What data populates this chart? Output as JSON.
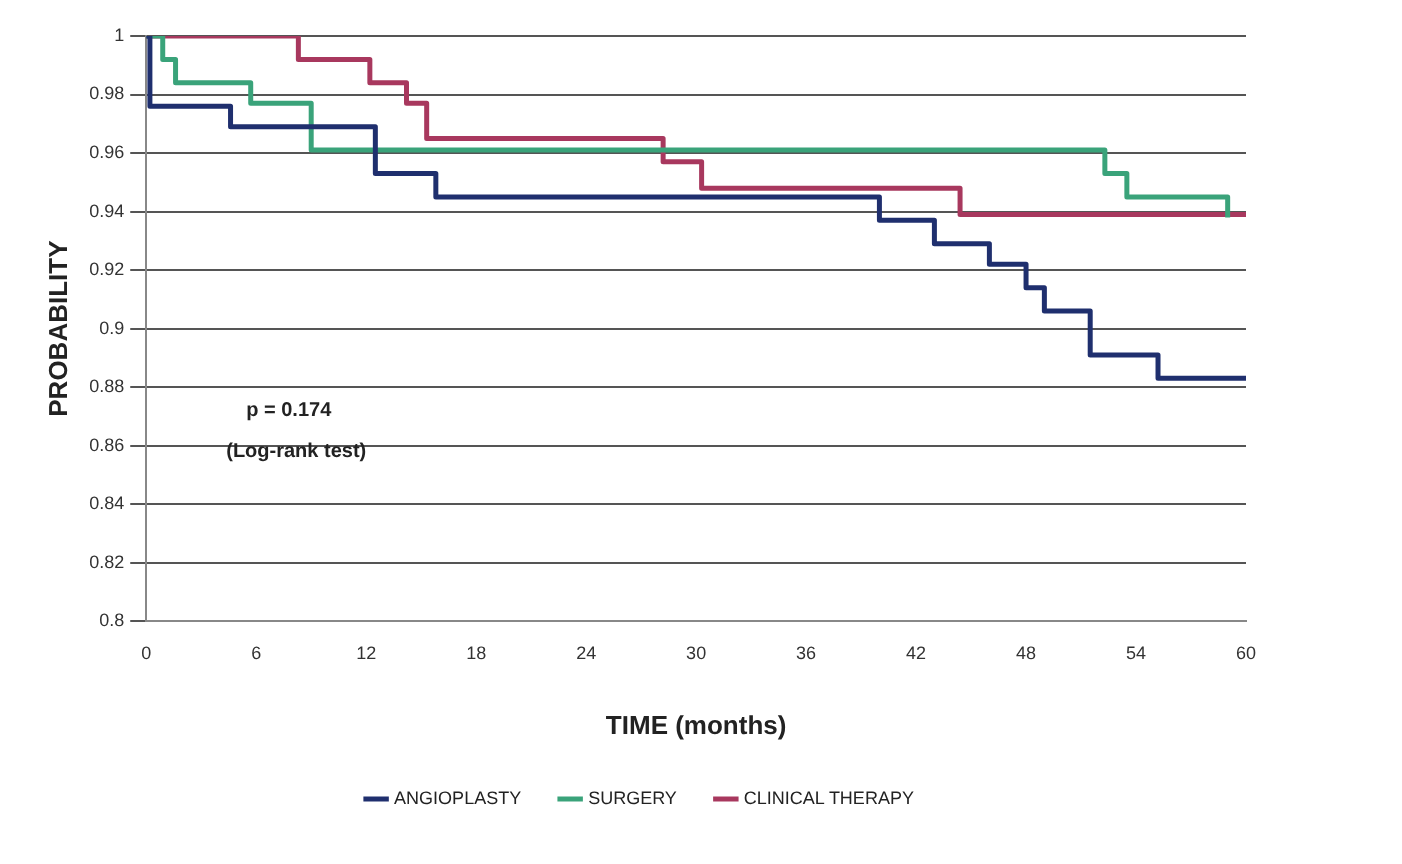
{
  "chart_data": {
    "type": "step",
    "xlabel": "TIME (months)",
    "ylabel": "PROBABILITY",
    "annotations": [
      "p = 0.174",
      "(Log-rank test)"
    ],
    "xlim": [
      0,
      60
    ],
    "xticks": [
      0,
      6,
      12,
      18,
      24,
      30,
      36,
      42,
      48,
      54,
      60
    ],
    "ylim": [
      0.8,
      1
    ],
    "yticks": [
      0.8,
      0.82,
      0.84,
      0.86,
      0.88,
      0.9,
      0.92,
      0.94,
      0.96,
      0.98,
      1
    ],
    "grid": "y",
    "legend": "bottom",
    "marker": "none",
    "line_style": "solid",
    "series": [
      {
        "name": "ANGIOPLASTY",
        "color": "#1f2f6e",
        "x": [
          0,
          0.2,
          4.6,
          12.5,
          15.8,
          40,
          43,
          46,
          48,
          49,
          51.5,
          55.2,
          60
        ],
        "values": [
          1,
          0.976,
          0.969,
          0.953,
          0.945,
          0.937,
          0.929,
          0.922,
          0.914,
          0.906,
          0.891,
          0.883,
          0.883
        ]
      },
      {
        "name": "SURGERY",
        "color": "#3aa37a",
        "x": [
          0,
          0.9,
          1.6,
          5.7,
          9,
          52.3,
          53.5,
          59
        ],
        "values": [
          1,
          0.992,
          0.984,
          0.977,
          0.961,
          0.953,
          0.945,
          0.938
        ]
      },
      {
        "name": "CLINICAL THERAPY",
        "color": "#a8385e",
        "x": [
          0,
          8.3,
          12.2,
          14.2,
          15.3,
          28.2,
          30.3,
          44.4,
          60
        ],
        "values": [
          1,
          0.992,
          0.984,
          0.977,
          0.965,
          0.957,
          0.948,
          0.939,
          0.939
        ]
      }
    ]
  }
}
